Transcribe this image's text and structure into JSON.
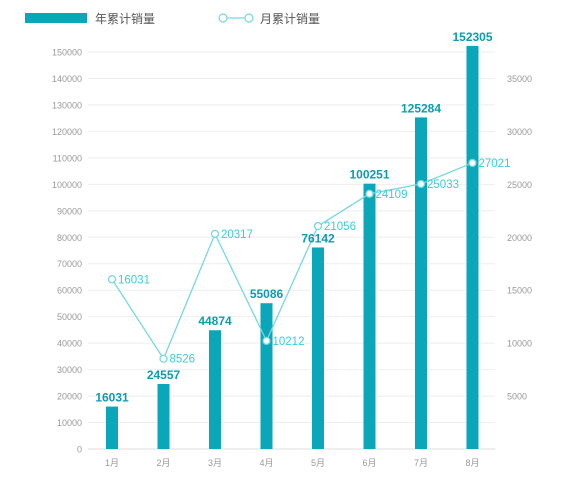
{
  "chart_data": {
    "type": "bar",
    "categories": [
      "1月",
      "2月",
      "3月",
      "4月",
      "5月",
      "6月",
      "7月",
      "8月"
    ],
    "series": [
      {
        "name": "年累计销量",
        "type": "bar",
        "axis": "left",
        "values": [
          16031,
          24557,
          44874,
          55086,
          76142,
          100251,
          125284,
          152305
        ]
      },
      {
        "name": "月累计销量",
        "type": "line",
        "axis": "right",
        "values": [
          16031,
          8526,
          20317,
          10212,
          21056,
          24109,
          25033,
          27021
        ]
      }
    ],
    "left_axis": {
      "ylim": [
        0,
        150000
      ],
      "ticks": [
        0,
        10000,
        20000,
        30000,
        40000,
        50000,
        60000,
        70000,
        80000,
        90000,
        100000,
        110000,
        120000,
        130000,
        140000,
        150000
      ]
    },
    "right_axis": {
      "ylim": [
        0,
        37500
      ],
      "ticks": [
        5000,
        10000,
        15000,
        20000,
        25000,
        30000,
        35000
      ]
    },
    "grid": true,
    "legend_position": "top-left",
    "colors": {
      "bar": "#0aa6ba",
      "bar_label": "#0a9db1",
      "line": "#76d7e3",
      "line_label": "#3ccbd9",
      "axis_text": "#999999",
      "grid": "#eeeeee"
    }
  }
}
